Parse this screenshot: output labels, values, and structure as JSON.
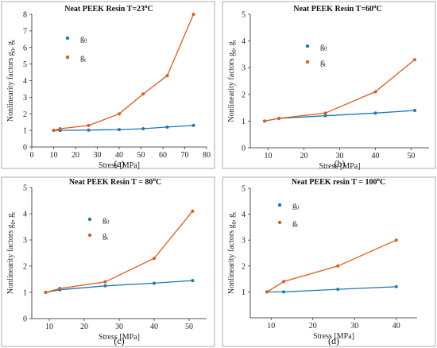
{
  "chart_data": [
    {
      "type": "line",
      "panel_label": "(a)",
      "title": "Neat PEEK Resin T=23°C",
      "title_main": "Neat PEEK Resin T=23",
      "title_sup": "o",
      "title_end": "C",
      "xlabel": "Stress [MPa]",
      "ylabel_main": "Nonlinearity factors g",
      "ylabel_sub1": "0",
      "ylabel_mid": ", g",
      "ylabel_sub2": "t",
      "xlim": [
        0,
        80
      ],
      "ylim": [
        0,
        8
      ],
      "xticks": [
        0,
        10,
        20,
        30,
        40,
        50,
        60,
        70,
        80
      ],
      "yticks": [
        0,
        1,
        2,
        3,
        4,
        5,
        6,
        7,
        8
      ],
      "grid": false,
      "legend_position": "top-left",
      "series": [
        {
          "name": "g0",
          "label_main": "g",
          "label_sub": "0",
          "color": "#1f77b4",
          "x": [
            10,
            13,
            26,
            40,
            51,
            62,
            74
          ],
          "y": [
            1.0,
            1.0,
            1.02,
            1.05,
            1.1,
            1.2,
            1.3
          ]
        },
        {
          "name": "gt",
          "label_main": "g",
          "label_sub": "t",
          "color": "#e05a1e",
          "x": [
            10,
            13,
            26,
            40,
            51,
            62,
            74
          ],
          "y": [
            1.0,
            1.1,
            1.3,
            2.0,
            3.2,
            4.3,
            8.0
          ]
        }
      ]
    },
    {
      "type": "line",
      "panel_label": "(b)",
      "title": "Neat PEEK Resin T=60°C",
      "title_main": "Neat PEEK Resin  T=60",
      "title_sup": "o",
      "title_end": "C",
      "xlabel": "Stress [MPa]",
      "ylabel_main": "Nonlinearity factors g",
      "ylabel_sub1": "0",
      "ylabel_mid": ", g",
      "ylabel_sub2": "t",
      "xlim": [
        5,
        55
      ],
      "ylim": [
        0,
        5
      ],
      "xticks": [
        10,
        20,
        30,
        40,
        50
      ],
      "yticks": [
        0,
        1,
        2,
        3,
        4,
        5
      ],
      "grid": false,
      "legend_position": "top-left",
      "series": [
        {
          "name": "g0",
          "label_main": "g",
          "label_sub": "0",
          "color": "#1f77b4",
          "x": [
            9,
            13,
            26,
            40,
            51
          ],
          "y": [
            1.0,
            1.1,
            1.2,
            1.3,
            1.4
          ]
        },
        {
          "name": "gt",
          "label_main": "g",
          "label_sub": "t",
          "color": "#e05a1e",
          "x": [
            9,
            13,
            26,
            40,
            51
          ],
          "y": [
            1.0,
            1.1,
            1.3,
            2.1,
            3.3
          ]
        }
      ]
    },
    {
      "type": "line",
      "panel_label": "(c)",
      "title": "Neat PEEK Resin T = 80°C",
      "title_main": "Neat PEEK Resin T = 80",
      "title_sup": "o",
      "title_end": "C",
      "xlabel": "Stress [MPa]",
      "ylabel_main": "Nonlinearity factors g",
      "ylabel_sub1": "0",
      "ylabel_mid": ", g",
      "ylabel_sub2": "t",
      "xlim": [
        5,
        55
      ],
      "ylim": [
        0,
        5
      ],
      "xticks": [
        10,
        20,
        30,
        40,
        50
      ],
      "yticks": [
        0,
        1,
        2,
        3,
        4,
        5
      ],
      "grid": false,
      "legend_position": "top-left",
      "series": [
        {
          "name": "g0",
          "label_main": "g",
          "label_sub": "0",
          "color": "#1f77b4",
          "x": [
            9,
            13,
            26,
            40,
            51
          ],
          "y": [
            1.0,
            1.1,
            1.25,
            1.35,
            1.45
          ]
        },
        {
          "name": "gt",
          "label_main": "g",
          "label_sub": "t",
          "color": "#e05a1e",
          "x": [
            9,
            13,
            26,
            40,
            51
          ],
          "y": [
            1.0,
            1.15,
            1.4,
            2.3,
            4.1
          ]
        }
      ]
    },
    {
      "type": "line",
      "panel_label": "(d)",
      "title": "Neat PEEK resin T = 100°C",
      "title_main": "Neat PEEK resin  T = 100",
      "title_sup": "o",
      "title_end": "C",
      "xlabel": "Stress [MPa]",
      "ylabel_main": "Nonlinearity factors g",
      "ylabel_sub1": "0",
      "ylabel_mid": ", g",
      "ylabel_sub2": "t",
      "xlim": [
        5,
        45
      ],
      "ylim": [
        0,
        5
      ],
      "xticks": [
        10,
        20,
        30,
        40
      ],
      "yticks": [
        1,
        2,
        3,
        4,
        5
      ],
      "grid": false,
      "legend_position": "top-left",
      "series": [
        {
          "name": "g0",
          "label_main": "g",
          "label_sub": "0",
          "color": "#1f77b4",
          "x": [
            9,
            13,
            26,
            40
          ],
          "y": [
            1.0,
            1.0,
            1.1,
            1.2
          ]
        },
        {
          "name": "gt",
          "label_main": "g",
          "label_sub": "t",
          "color": "#e05a1e",
          "x": [
            9,
            13,
            26,
            40
          ],
          "y": [
            1.0,
            1.4,
            2.0,
            3.0
          ]
        }
      ]
    }
  ]
}
